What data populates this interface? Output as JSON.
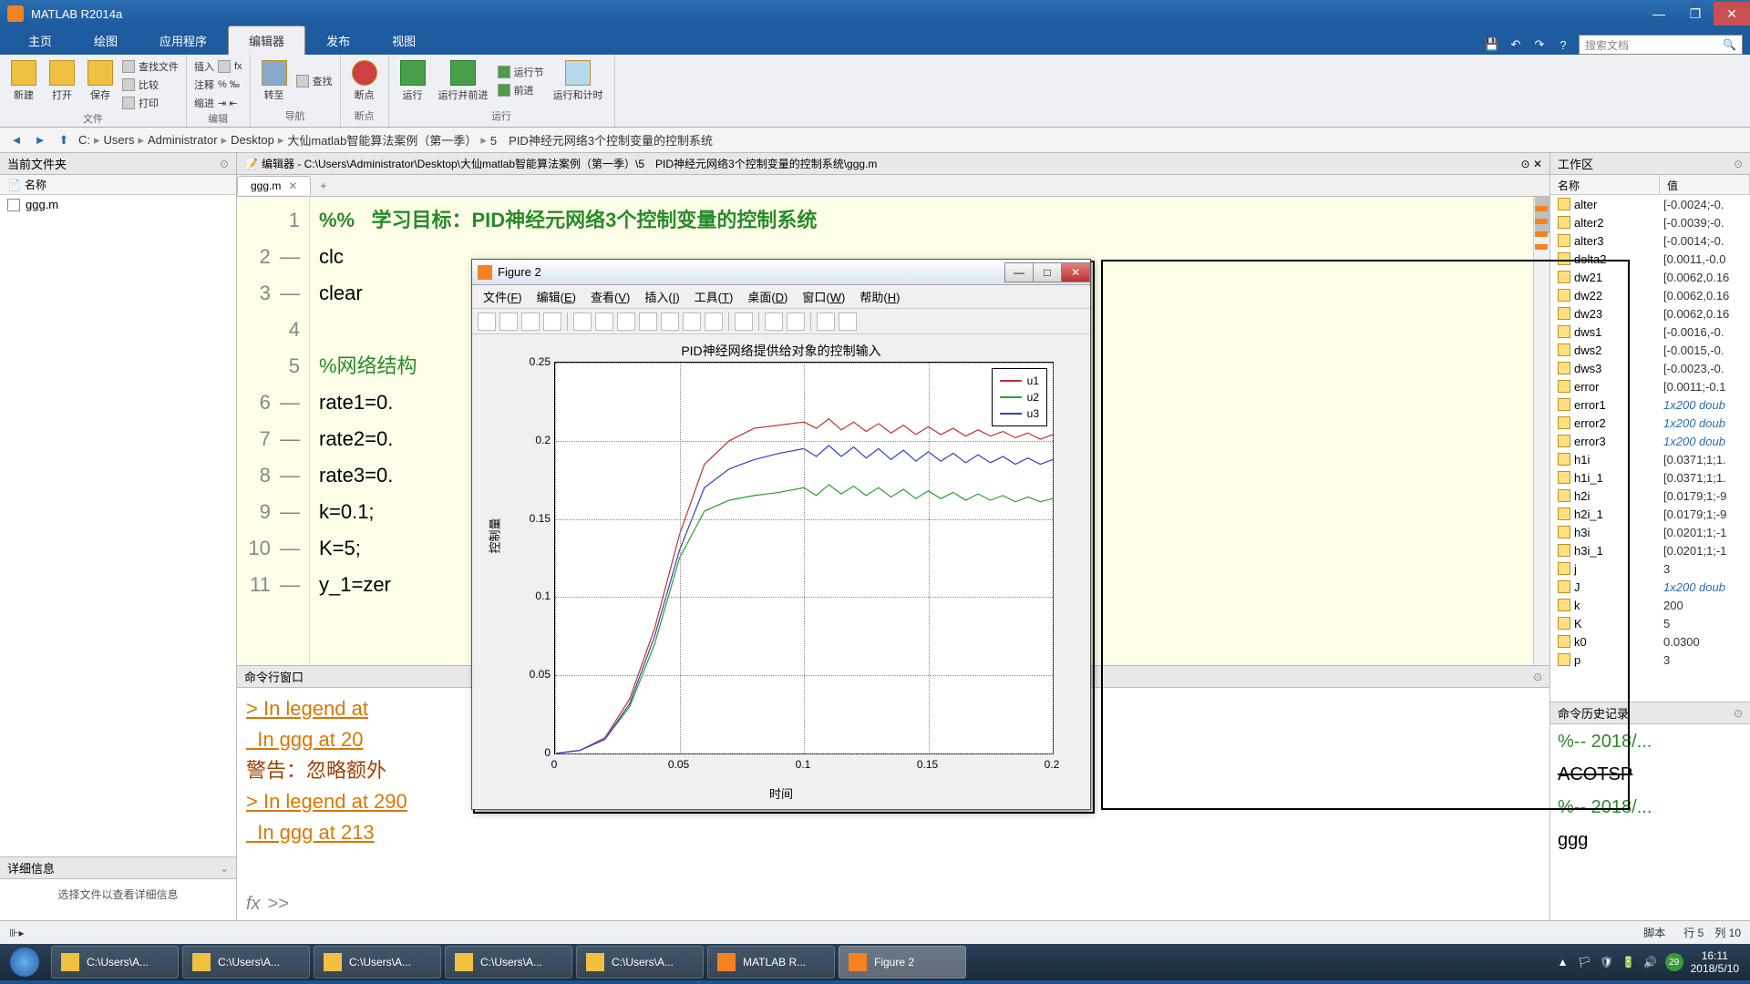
{
  "app_title": "MATLAB R2014a",
  "ribbon": {
    "tabs": [
      "主页",
      "绘图",
      "应用程序",
      "编辑器",
      "发布",
      "视图"
    ],
    "active": 3,
    "search_placeholder": "搜索文档"
  },
  "toolstrip": {
    "groups": [
      {
        "label": "文件",
        "items": [
          {
            "label": "新建"
          },
          {
            "label": "打开"
          },
          {
            "label": "保存"
          }
        ],
        "subs": [
          "查找文件",
          "比较",
          "打印"
        ]
      },
      {
        "label": "编辑",
        "cols": [
          [
            "插入",
            "注释",
            "缩进"
          ]
        ],
        "subs": [
          "fx",
          "%",
          "⇄"
        ]
      },
      {
        "label": "导航",
        "items": [
          {
            "label": "转至"
          }
        ],
        "subs": [
          "查找"
        ]
      },
      {
        "label": "断点",
        "items": [
          {
            "label": "断点"
          }
        ]
      },
      {
        "label": "运行",
        "items": [
          {
            "label": "运行"
          },
          {
            "label": "运行并前进"
          },
          {
            "label": "运行节"
          },
          {
            "label": "前进"
          },
          {
            "label": "运行和计时"
          }
        ]
      }
    ]
  },
  "path": [
    "C:",
    "Users",
    "Administrator",
    "Desktop",
    "大仙matlab智能算法案例（第一季）",
    "5　PID神经元网络3个控制变量的控制系统"
  ],
  "left": {
    "header": "当前文件夹",
    "col": "名称",
    "files": [
      "ggg.m"
    ],
    "detail_header": "详细信息",
    "detail_body": "选择文件以查看详细信息"
  },
  "editor": {
    "header_prefix": "编辑器 - ",
    "header_path": "C:\\Users\\Administrator\\Desktop\\大仙matlab智能算法案例（第一季）\\5　PID神经元网络3个控制变量的控制系统\\ggg.m",
    "tab": "ggg.m",
    "lines": [
      {
        "n": 1,
        "dash": false,
        "text": "%%   学习目标：PID神经元网络3个控制变量的控制系统",
        "cls": "section"
      },
      {
        "n": 2,
        "dash": true,
        "text": "clc"
      },
      {
        "n": 3,
        "dash": true,
        "text": "clear"
      },
      {
        "n": 4,
        "dash": false,
        "text": ""
      },
      {
        "n": 5,
        "dash": false,
        "text": "%网络结构",
        "cls": "comment"
      },
      {
        "n": 6,
        "dash": true,
        "text": "rate1=0."
      },
      {
        "n": 7,
        "dash": true,
        "text": "rate2=0."
      },
      {
        "n": 8,
        "dash": true,
        "text": "rate3=0."
      },
      {
        "n": 9,
        "dash": true,
        "text": "k=0.1;"
      },
      {
        "n": 10,
        "dash": true,
        "text": "K=5;"
      },
      {
        "n": 11,
        "dash": true,
        "text": "y_1=zer"
      }
    ]
  },
  "command": {
    "header": "命令行窗口",
    "lines": [
      {
        "text": "> In legend at",
        "cls": "warn link"
      },
      {
        "text": "  In ggg at 20",
        "cls": "warn link"
      },
      {
        "text": "警告：忽略额外",
        "cls": "warncn"
      },
      {
        "text": "> In legend at 290",
        "cls": "warn link"
      },
      {
        "text": "  In ggg at 213",
        "cls": "warn link"
      }
    ],
    "prompt": ">>"
  },
  "workspace": {
    "header": "工作区",
    "cols": [
      "名称",
      "值"
    ],
    "vars": [
      {
        "n": "alter",
        "v": "[-0.0024;-0."
      },
      {
        "n": "alter2",
        "v": "[-0.0039;-0."
      },
      {
        "n": "alter3",
        "v": "[-0.0014;-0."
      },
      {
        "n": "delta2",
        "v": "[0.0011,-0.0"
      },
      {
        "n": "dw21",
        "v": "[0.0062,0.16"
      },
      {
        "n": "dw22",
        "v": "[0.0062,0.16"
      },
      {
        "n": "dw23",
        "v": "[0.0062,0.16"
      },
      {
        "n": "dws1",
        "v": "[-0.0016,-0."
      },
      {
        "n": "dws2",
        "v": "[-0.0015,-0."
      },
      {
        "n": "dws3",
        "v": "[-0.0023,-0."
      },
      {
        "n": "error",
        "v": "[0.0011;-0.1"
      },
      {
        "n": "error1",
        "v": "1x200 doub",
        "link": true
      },
      {
        "n": "error2",
        "v": "1x200 doub",
        "link": true
      },
      {
        "n": "error3",
        "v": "1x200 doub",
        "link": true
      },
      {
        "n": "h1i",
        "v": "[0.0371;1;1."
      },
      {
        "n": "h1i_1",
        "v": "[0.0371;1;1."
      },
      {
        "n": "h2i",
        "v": "[0.0179;1;-9"
      },
      {
        "n": "h2i_1",
        "v": "[0.0179;1;-9"
      },
      {
        "n": "h3i",
        "v": "[0.0201;1;-1"
      },
      {
        "n": "h3i_1",
        "v": "[0.0201;1;-1"
      },
      {
        "n": "j",
        "v": "3"
      },
      {
        "n": "J",
        "v": "1x200 doub",
        "link": true
      },
      {
        "n": "k",
        "v": "200"
      },
      {
        "n": "K",
        "v": "5"
      },
      {
        "n": "k0",
        "v": "0.0300"
      },
      {
        "n": "p",
        "v": "3"
      }
    ]
  },
  "history": {
    "header": "命令历史记录",
    "lines": [
      {
        "text": "%-- 2018/...",
        "cls": "comment"
      },
      {
        "text": "ACOTSP",
        "strike": true
      },
      {
        "text": "%-- 2018/...",
        "cls": "comment"
      },
      {
        "text": "ggg"
      }
    ]
  },
  "statusbar": {
    "left": "",
    "script": "脚本",
    "pos": "行 5　列 10"
  },
  "taskbar": {
    "items": [
      {
        "label": "C:\\Users\\A..."
      },
      {
        "label": "C:\\Users\\A..."
      },
      {
        "label": "C:\\Users\\A..."
      },
      {
        "label": "C:\\Users\\A..."
      },
      {
        "label": "C:\\Users\\A..."
      },
      {
        "label": "MATLAB R...",
        "matlab": true
      },
      {
        "label": "Figure 2",
        "matlab": true,
        "active": true
      }
    ],
    "time": "16:11",
    "date": "2018/5/10",
    "ime": "29"
  },
  "figure": {
    "title": "Figure 2",
    "menus": [
      "文件(F)",
      "编辑(E)",
      "查看(V)",
      "插入(I)",
      "工具(T)",
      "桌面(D)",
      "窗口(W)",
      "帮助(H)"
    ],
    "plot_title": "PID神经网络提供给对象的控制输入",
    "xlabel": "时间",
    "ylabel": "控制量",
    "xlim": [
      0,
      0.2
    ],
    "ylim": [
      0,
      0.25
    ],
    "xticks": [
      0,
      0.05,
      0.1,
      0.15,
      0.2
    ],
    "yticks": [
      0,
      0.05,
      0.1,
      0.15,
      0.2,
      0.25
    ],
    "legend": [
      "u1",
      "u2",
      "u3"
    ],
    "colors": {
      "u1": "#c23030",
      "u2": "#2aa02a",
      "u3": "#3040c0"
    },
    "series": {
      "u1": [
        [
          0,
          0
        ],
        [
          0.01,
          0.002
        ],
        [
          0.02,
          0.01
        ],
        [
          0.03,
          0.035
        ],
        [
          0.04,
          0.08
        ],
        [
          0.05,
          0.14
        ],
        [
          0.06,
          0.185
        ],
        [
          0.07,
          0.2
        ],
        [
          0.08,
          0.208
        ],
        [
          0.09,
          0.21
        ],
        [
          0.1,
          0.212
        ],
        [
          0.105,
          0.208
        ],
        [
          0.11,
          0.214
        ],
        [
          0.115,
          0.207
        ],
        [
          0.12,
          0.212
        ],
        [
          0.125,
          0.206
        ],
        [
          0.13,
          0.211
        ],
        [
          0.135,
          0.205
        ],
        [
          0.14,
          0.21
        ],
        [
          0.145,
          0.204
        ],
        [
          0.15,
          0.209
        ],
        [
          0.155,
          0.204
        ],
        [
          0.16,
          0.208
        ],
        [
          0.165,
          0.203
        ],
        [
          0.17,
          0.207
        ],
        [
          0.175,
          0.203
        ],
        [
          0.18,
          0.206
        ],
        [
          0.185,
          0.202
        ],
        [
          0.19,
          0.205
        ],
        [
          0.195,
          0.201
        ],
        [
          0.2,
          0.204
        ]
      ],
      "u2": [
        [
          0,
          0
        ],
        [
          0.01,
          0.002
        ],
        [
          0.02,
          0.009
        ],
        [
          0.03,
          0.03
        ],
        [
          0.04,
          0.07
        ],
        [
          0.05,
          0.125
        ],
        [
          0.06,
          0.155
        ],
        [
          0.07,
          0.162
        ],
        [
          0.08,
          0.165
        ],
        [
          0.09,
          0.167
        ],
        [
          0.1,
          0.17
        ],
        [
          0.105,
          0.165
        ],
        [
          0.11,
          0.172
        ],
        [
          0.115,
          0.166
        ],
        [
          0.12,
          0.171
        ],
        [
          0.125,
          0.165
        ],
        [
          0.13,
          0.17
        ],
        [
          0.135,
          0.164
        ],
        [
          0.14,
          0.169
        ],
        [
          0.145,
          0.163
        ],
        [
          0.15,
          0.168
        ],
        [
          0.155,
          0.163
        ],
        [
          0.16,
          0.167
        ],
        [
          0.165,
          0.162
        ],
        [
          0.17,
          0.166
        ],
        [
          0.175,
          0.162
        ],
        [
          0.18,
          0.165
        ],
        [
          0.185,
          0.161
        ],
        [
          0.19,
          0.164
        ],
        [
          0.195,
          0.161
        ],
        [
          0.2,
          0.163
        ]
      ],
      "u3": [
        [
          0,
          0
        ],
        [
          0.01,
          0.002
        ],
        [
          0.02,
          0.009
        ],
        [
          0.03,
          0.032
        ],
        [
          0.04,
          0.075
        ],
        [
          0.05,
          0.13
        ],
        [
          0.06,
          0.17
        ],
        [
          0.07,
          0.182
        ],
        [
          0.08,
          0.188
        ],
        [
          0.09,
          0.192
        ],
        [
          0.1,
          0.195
        ],
        [
          0.105,
          0.19
        ],
        [
          0.11,
          0.197
        ],
        [
          0.115,
          0.19
        ],
        [
          0.12,
          0.196
        ],
        [
          0.125,
          0.189
        ],
        [
          0.13,
          0.195
        ],
        [
          0.135,
          0.188
        ],
        [
          0.14,
          0.194
        ],
        [
          0.145,
          0.187
        ],
        [
          0.15,
          0.193
        ],
        [
          0.155,
          0.187
        ],
        [
          0.16,
          0.192
        ],
        [
          0.165,
          0.186
        ],
        [
          0.17,
          0.191
        ],
        [
          0.175,
          0.186
        ],
        [
          0.18,
          0.19
        ],
        [
          0.185,
          0.185
        ],
        [
          0.19,
          0.189
        ],
        [
          0.195,
          0.185
        ],
        [
          0.2,
          0.188
        ]
      ]
    }
  }
}
